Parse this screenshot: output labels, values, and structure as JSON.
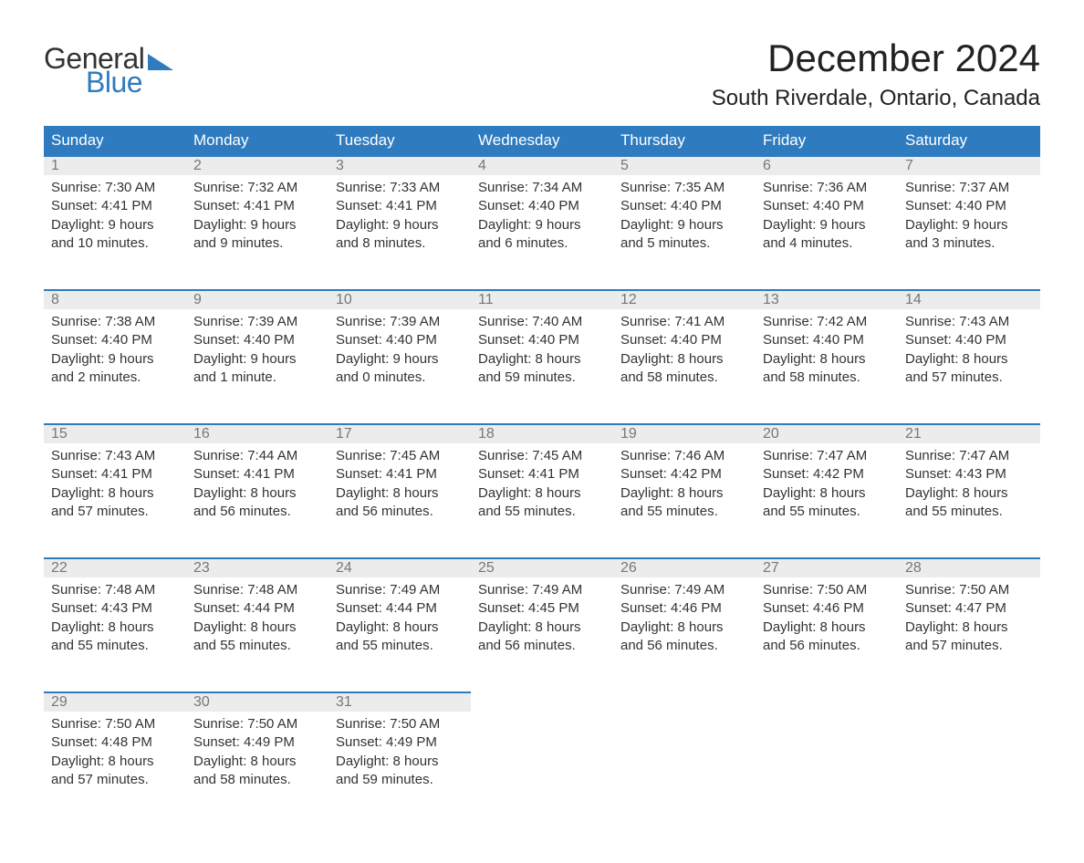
{
  "logo": {
    "word1": "General",
    "word2": "Blue"
  },
  "title": "December 2024",
  "location": "South Riverdale, Ontario, Canada",
  "colors": {
    "brand_blue": "#2f7bbf",
    "header_bg": "#2f7bbf",
    "header_text": "#ffffff",
    "daynum_bg": "#ececec",
    "daynum_text": "#777777",
    "body_text": "#333333",
    "page_bg": "#ffffff",
    "row_divider": "#2f7bbf"
  },
  "fonts": {
    "family": "Arial",
    "month_title_size": 42,
    "location_size": 24,
    "weekday_size": 17,
    "daynum_size": 16,
    "body_size": 15
  },
  "weekdays": [
    "Sunday",
    "Monday",
    "Tuesday",
    "Wednesday",
    "Thursday",
    "Friday",
    "Saturday"
  ],
  "weeks": [
    [
      {
        "n": "1",
        "sunrise": "Sunrise: 7:30 AM",
        "sunset": "Sunset: 4:41 PM",
        "d1": "Daylight: 9 hours",
        "d2": "and 10 minutes."
      },
      {
        "n": "2",
        "sunrise": "Sunrise: 7:32 AM",
        "sunset": "Sunset: 4:41 PM",
        "d1": "Daylight: 9 hours",
        "d2": "and 9 minutes."
      },
      {
        "n": "3",
        "sunrise": "Sunrise: 7:33 AM",
        "sunset": "Sunset: 4:41 PM",
        "d1": "Daylight: 9 hours",
        "d2": "and 8 minutes."
      },
      {
        "n": "4",
        "sunrise": "Sunrise: 7:34 AM",
        "sunset": "Sunset: 4:40 PM",
        "d1": "Daylight: 9 hours",
        "d2": "and 6 minutes."
      },
      {
        "n": "5",
        "sunrise": "Sunrise: 7:35 AM",
        "sunset": "Sunset: 4:40 PM",
        "d1": "Daylight: 9 hours",
        "d2": "and 5 minutes."
      },
      {
        "n": "6",
        "sunrise": "Sunrise: 7:36 AM",
        "sunset": "Sunset: 4:40 PM",
        "d1": "Daylight: 9 hours",
        "d2": "and 4 minutes."
      },
      {
        "n": "7",
        "sunrise": "Sunrise: 7:37 AM",
        "sunset": "Sunset: 4:40 PM",
        "d1": "Daylight: 9 hours",
        "d2": "and 3 minutes."
      }
    ],
    [
      {
        "n": "8",
        "sunrise": "Sunrise: 7:38 AM",
        "sunset": "Sunset: 4:40 PM",
        "d1": "Daylight: 9 hours",
        "d2": "and 2 minutes."
      },
      {
        "n": "9",
        "sunrise": "Sunrise: 7:39 AM",
        "sunset": "Sunset: 4:40 PM",
        "d1": "Daylight: 9 hours",
        "d2": "and 1 minute."
      },
      {
        "n": "10",
        "sunrise": "Sunrise: 7:39 AM",
        "sunset": "Sunset: 4:40 PM",
        "d1": "Daylight: 9 hours",
        "d2": "and 0 minutes."
      },
      {
        "n": "11",
        "sunrise": "Sunrise: 7:40 AM",
        "sunset": "Sunset: 4:40 PM",
        "d1": "Daylight: 8 hours",
        "d2": "and 59 minutes."
      },
      {
        "n": "12",
        "sunrise": "Sunrise: 7:41 AM",
        "sunset": "Sunset: 4:40 PM",
        "d1": "Daylight: 8 hours",
        "d2": "and 58 minutes."
      },
      {
        "n": "13",
        "sunrise": "Sunrise: 7:42 AM",
        "sunset": "Sunset: 4:40 PM",
        "d1": "Daylight: 8 hours",
        "d2": "and 58 minutes."
      },
      {
        "n": "14",
        "sunrise": "Sunrise: 7:43 AM",
        "sunset": "Sunset: 4:40 PM",
        "d1": "Daylight: 8 hours",
        "d2": "and 57 minutes."
      }
    ],
    [
      {
        "n": "15",
        "sunrise": "Sunrise: 7:43 AM",
        "sunset": "Sunset: 4:41 PM",
        "d1": "Daylight: 8 hours",
        "d2": "and 57 minutes."
      },
      {
        "n": "16",
        "sunrise": "Sunrise: 7:44 AM",
        "sunset": "Sunset: 4:41 PM",
        "d1": "Daylight: 8 hours",
        "d2": "and 56 minutes."
      },
      {
        "n": "17",
        "sunrise": "Sunrise: 7:45 AM",
        "sunset": "Sunset: 4:41 PM",
        "d1": "Daylight: 8 hours",
        "d2": "and 56 minutes."
      },
      {
        "n": "18",
        "sunrise": "Sunrise: 7:45 AM",
        "sunset": "Sunset: 4:41 PM",
        "d1": "Daylight: 8 hours",
        "d2": "and 55 minutes."
      },
      {
        "n": "19",
        "sunrise": "Sunrise: 7:46 AM",
        "sunset": "Sunset: 4:42 PM",
        "d1": "Daylight: 8 hours",
        "d2": "and 55 minutes."
      },
      {
        "n": "20",
        "sunrise": "Sunrise: 7:47 AM",
        "sunset": "Sunset: 4:42 PM",
        "d1": "Daylight: 8 hours",
        "d2": "and 55 minutes."
      },
      {
        "n": "21",
        "sunrise": "Sunrise: 7:47 AM",
        "sunset": "Sunset: 4:43 PM",
        "d1": "Daylight: 8 hours",
        "d2": "and 55 minutes."
      }
    ],
    [
      {
        "n": "22",
        "sunrise": "Sunrise: 7:48 AM",
        "sunset": "Sunset: 4:43 PM",
        "d1": "Daylight: 8 hours",
        "d2": "and 55 minutes."
      },
      {
        "n": "23",
        "sunrise": "Sunrise: 7:48 AM",
        "sunset": "Sunset: 4:44 PM",
        "d1": "Daylight: 8 hours",
        "d2": "and 55 minutes."
      },
      {
        "n": "24",
        "sunrise": "Sunrise: 7:49 AM",
        "sunset": "Sunset: 4:44 PM",
        "d1": "Daylight: 8 hours",
        "d2": "and 55 minutes."
      },
      {
        "n": "25",
        "sunrise": "Sunrise: 7:49 AM",
        "sunset": "Sunset: 4:45 PM",
        "d1": "Daylight: 8 hours",
        "d2": "and 56 minutes."
      },
      {
        "n": "26",
        "sunrise": "Sunrise: 7:49 AM",
        "sunset": "Sunset: 4:46 PM",
        "d1": "Daylight: 8 hours",
        "d2": "and 56 minutes."
      },
      {
        "n": "27",
        "sunrise": "Sunrise: 7:50 AM",
        "sunset": "Sunset: 4:46 PM",
        "d1": "Daylight: 8 hours",
        "d2": "and 56 minutes."
      },
      {
        "n": "28",
        "sunrise": "Sunrise: 7:50 AM",
        "sunset": "Sunset: 4:47 PM",
        "d1": "Daylight: 8 hours",
        "d2": "and 57 minutes."
      }
    ],
    [
      {
        "n": "29",
        "sunrise": "Sunrise: 7:50 AM",
        "sunset": "Sunset: 4:48 PM",
        "d1": "Daylight: 8 hours",
        "d2": "and 57 minutes."
      },
      {
        "n": "30",
        "sunrise": "Sunrise: 7:50 AM",
        "sunset": "Sunset: 4:49 PM",
        "d1": "Daylight: 8 hours",
        "d2": "and 58 minutes."
      },
      {
        "n": "31",
        "sunrise": "Sunrise: 7:50 AM",
        "sunset": "Sunset: 4:49 PM",
        "d1": "Daylight: 8 hours",
        "d2": "and 59 minutes."
      },
      null,
      null,
      null,
      null
    ]
  ]
}
